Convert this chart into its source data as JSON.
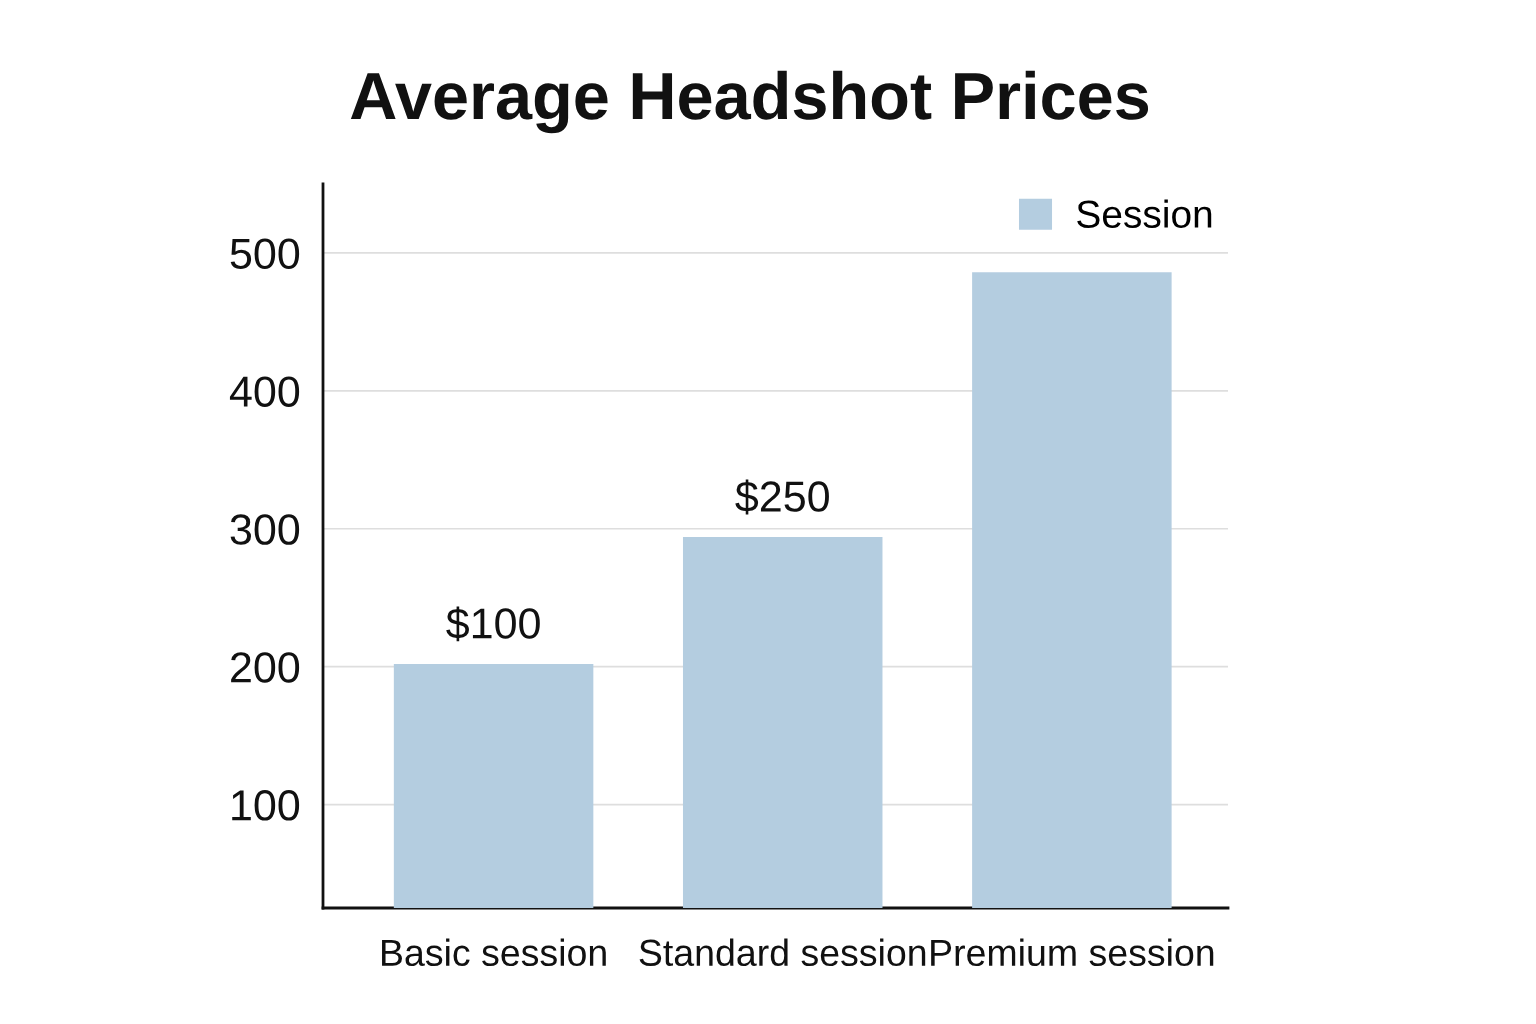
{
  "chart_data": {
    "type": "bar",
    "title": "Average Headshot Prices",
    "categories": [
      "Basic session",
      "Standard session",
      "Premium session"
    ],
    "series": [
      {
        "name": "Session",
        "color": "#b4cde0",
        "values": [
          202,
          294,
          486
        ]
      }
    ],
    "annotations": [
      {
        "text": "$100",
        "x": "Basic session",
        "y": 202
      },
      {
        "text": "$250",
        "x": "Standard session",
        "y": 294
      }
    ],
    "ylim": [
      25,
      550
    ],
    "yticks": [
      100,
      200,
      300,
      400,
      500
    ],
    "grid": "y",
    "legend": "top right"
  }
}
